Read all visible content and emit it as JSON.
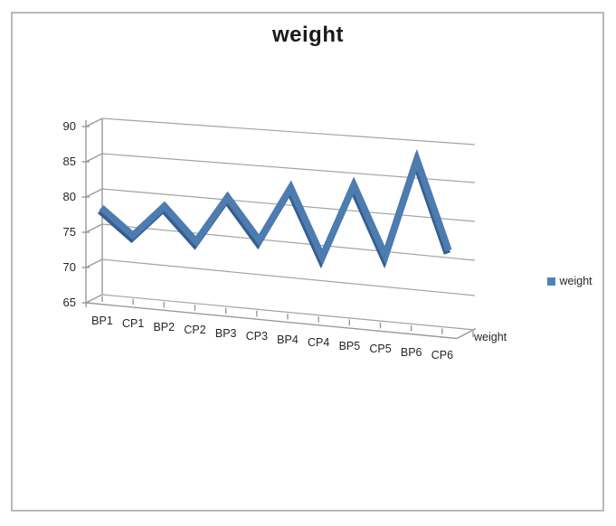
{
  "chart_data": {
    "type": "line",
    "subtype": "3d-ribbon",
    "title": "weight",
    "categories": [
      "BP1",
      "CP1",
      "BP2",
      "CP2",
      "BP3",
      "CP3",
      "BP4",
      "CP4",
      "BP5",
      "CP5",
      "BP6",
      "CP6"
    ],
    "series": [
      {
        "name": "weight",
        "color": "#4f81bd",
        "values": [
          78,
          74.5,
          79,
          74.5,
          81,
          75.5,
          83,
          74,
          84,
          75,
          88,
          76.5
        ]
      }
    ],
    "value_axis": {
      "min": 65,
      "max": 90,
      "step": 5,
      "ticks": [
        90,
        85,
        80,
        75,
        70,
        65
      ]
    },
    "series_axis_label": "weight",
    "legend": {
      "position": "right",
      "entries": [
        {
          "label": "weight",
          "swatch_color": "#4f81bd"
        }
      ]
    },
    "gridlines": true,
    "layout_hints": {
      "projection": "3d-perspective",
      "grid": "on",
      "plot_background": "#ffffff"
    },
    "colors": {
      "series_top": "#4c7cb0",
      "series_side": "#365d8d",
      "gridline": "#a3a3a3",
      "axis": "#9a9a9a",
      "frame_border": "#b9b9b9",
      "text": "#262626",
      "title_text": "#1a1a1a"
    }
  }
}
